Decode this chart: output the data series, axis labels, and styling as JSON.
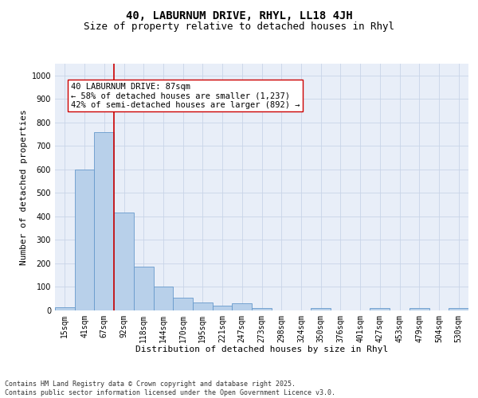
{
  "title1": "40, LABURNUM DRIVE, RHYL, LL18 4JH",
  "title2": "Size of property relative to detached houses in Rhyl",
  "xlabel": "Distribution of detached houses by size in Rhyl",
  "ylabel": "Number of detached properties",
  "bin_labels": [
    "15sqm",
    "41sqm",
    "67sqm",
    "92sqm",
    "118sqm",
    "144sqm",
    "170sqm",
    "195sqm",
    "221sqm",
    "247sqm",
    "273sqm",
    "298sqm",
    "324sqm",
    "350sqm",
    "376sqm",
    "401sqm",
    "427sqm",
    "453sqm",
    "479sqm",
    "504sqm",
    "530sqm"
  ],
  "bar_heights": [
    15,
    600,
    760,
    415,
    185,
    100,
    55,
    35,
    20,
    30,
    10,
    0,
    0,
    10,
    0,
    0,
    10,
    0,
    10,
    0,
    10
  ],
  "bar_color": "#b8d0ea",
  "bar_edge_color": "#6699cc",
  "vline_color": "#cc0000",
  "annotation_text": "40 LABURNUM DRIVE: 87sqm\n← 58% of detached houses are smaller (1,237)\n42% of semi-detached houses are larger (892) →",
  "annotation_box_color": "#ffffff",
  "annotation_box_edge": "#cc0000",
  "ylim": [
    0,
    1050
  ],
  "yticks": [
    0,
    100,
    200,
    300,
    400,
    500,
    600,
    700,
    800,
    900,
    1000
  ],
  "grid_color": "#c8d4e8",
  "bg_color": "#e8eef8",
  "footer": "Contains HM Land Registry data © Crown copyright and database right 2025.\nContains public sector information licensed under the Open Government Licence v3.0.",
  "title1_fontsize": 10,
  "title2_fontsize": 9,
  "xlabel_fontsize": 8,
  "ylabel_fontsize": 8,
  "tick_fontsize": 7,
  "annotation_fontsize": 7.5,
  "footer_fontsize": 6
}
